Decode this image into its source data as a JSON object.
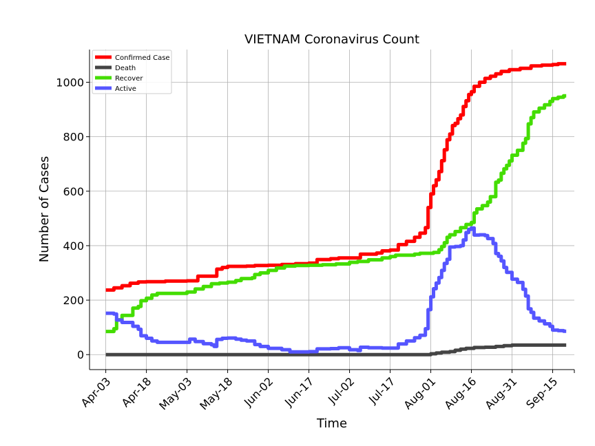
{
  "chart_data": {
    "type": "line",
    "title": "VIETNAM Coronavirus Count",
    "xlabel": "Time",
    "ylabel": "Number of Cases",
    "x_ticks": [
      "Apr-03",
      "Apr-18",
      "May-03",
      "May-18",
      "Jun-02",
      "Jun-17",
      "Jul-02",
      "Jul-17",
      "Aug-01",
      "Aug-16",
      "Aug-31",
      "Sep-15"
    ],
    "y_ticks": [
      0,
      200,
      400,
      600,
      800,
      1000
    ],
    "xlim": [
      "2020-03-28",
      "2020-09-23"
    ],
    "ylim": [
      -55,
      1120
    ],
    "grid": true,
    "legend_position": "top-left",
    "date_start": "2020-04-03",
    "series": [
      {
        "name": "Confirmed Case",
        "color": "#ff0000",
        "points": [
          [
            "2020-04-03",
            237
          ],
          [
            "2020-04-06",
            245
          ],
          [
            "2020-04-09",
            253
          ],
          [
            "2020-04-12",
            262
          ],
          [
            "2020-04-15",
            267
          ],
          [
            "2020-04-18",
            268
          ],
          [
            "2020-04-24",
            268
          ],
          [
            "2020-04-25",
            270
          ],
          [
            "2020-05-03",
            271
          ],
          [
            "2020-05-06",
            271
          ],
          [
            "2020-05-07",
            288
          ],
          [
            "2020-05-13",
            288
          ],
          [
            "2020-05-14",
            314
          ],
          [
            "2020-05-16",
            320
          ],
          [
            "2020-05-18",
            324
          ],
          [
            "2020-05-25",
            325
          ],
          [
            "2020-05-28",
            327
          ],
          [
            "2020-06-02",
            328
          ],
          [
            "2020-06-07",
            331
          ],
          [
            "2020-06-12",
            334
          ],
          [
            "2020-06-17",
            336
          ],
          [
            "2020-06-20",
            349
          ],
          [
            "2020-06-25",
            352
          ],
          [
            "2020-06-28",
            355
          ],
          [
            "2020-07-02",
            355
          ],
          [
            "2020-07-05",
            355
          ],
          [
            "2020-07-06",
            369
          ],
          [
            "2020-07-12",
            373
          ],
          [
            "2020-07-14",
            381
          ],
          [
            "2020-07-17",
            384
          ],
          [
            "2020-07-20",
            404
          ],
          [
            "2020-07-23",
            416
          ],
          [
            "2020-07-26",
            431
          ],
          [
            "2020-07-28",
            446
          ],
          [
            "2020-07-30",
            466
          ],
          [
            "2020-07-31",
            540
          ],
          [
            "2020-08-01",
            590
          ],
          [
            "2020-08-02",
            620
          ],
          [
            "2020-08-03",
            642
          ],
          [
            "2020-08-04",
            672
          ],
          [
            "2020-08-05",
            712
          ],
          [
            "2020-08-06",
            752
          ],
          [
            "2020-08-07",
            789
          ],
          [
            "2020-08-08",
            810
          ],
          [
            "2020-08-09",
            841
          ],
          [
            "2020-08-10",
            849
          ],
          [
            "2020-08-11",
            866
          ],
          [
            "2020-08-12",
            880
          ],
          [
            "2020-08-13",
            911
          ],
          [
            "2020-08-14",
            932
          ],
          [
            "2020-08-15",
            955
          ],
          [
            "2020-08-16",
            965
          ],
          [
            "2020-08-17",
            985
          ],
          [
            "2020-08-19",
            1000
          ],
          [
            "2020-08-21",
            1014
          ],
          [
            "2020-08-23",
            1022
          ],
          [
            "2020-08-25",
            1031
          ],
          [
            "2020-08-27",
            1040
          ],
          [
            "2020-08-30",
            1046
          ],
          [
            "2020-09-03",
            1051
          ],
          [
            "2020-09-07",
            1060
          ],
          [
            "2020-09-11",
            1063
          ],
          [
            "2020-09-15",
            1065
          ],
          [
            "2020-09-17",
            1068
          ],
          [
            "2020-09-20",
            1068
          ]
        ]
      },
      {
        "name": "Death",
        "color": "#444444",
        "points": [
          [
            "2020-04-03",
            0
          ],
          [
            "2020-07-31",
            0
          ],
          [
            "2020-08-01",
            3
          ],
          [
            "2020-08-03",
            6
          ],
          [
            "2020-08-05",
            9
          ],
          [
            "2020-08-08",
            11
          ],
          [
            "2020-08-10",
            16
          ],
          [
            "2020-08-12",
            20
          ],
          [
            "2020-08-14",
            23
          ],
          [
            "2020-08-17",
            26
          ],
          [
            "2020-08-21",
            27
          ],
          [
            "2020-08-25",
            30
          ],
          [
            "2020-08-28",
            33
          ],
          [
            "2020-08-31",
            35
          ],
          [
            "2020-09-05",
            35
          ],
          [
            "2020-09-20",
            35
          ]
        ]
      },
      {
        "name": "Recover",
        "color": "#44dd00",
        "points": [
          [
            "2020-04-03",
            85
          ],
          [
            "2020-04-06",
            95
          ],
          [
            "2020-04-07",
            128
          ],
          [
            "2020-04-09",
            144
          ],
          [
            "2020-04-12",
            144
          ],
          [
            "2020-04-13",
            171
          ],
          [
            "2020-04-15",
            177
          ],
          [
            "2020-04-16",
            198
          ],
          [
            "2020-04-18",
            207
          ],
          [
            "2020-04-20",
            219
          ],
          [
            "2020-04-22",
            225
          ],
          [
            "2020-04-25",
            225
          ],
          [
            "2020-05-03",
            230
          ],
          [
            "2020-05-06",
            241
          ],
          [
            "2020-05-09",
            250
          ],
          [
            "2020-05-12",
            260
          ],
          [
            "2020-05-15",
            263
          ],
          [
            "2020-05-18",
            266
          ],
          [
            "2020-05-21",
            272
          ],
          [
            "2020-05-23",
            279
          ],
          [
            "2020-05-27",
            282
          ],
          [
            "2020-05-28",
            294
          ],
          [
            "2020-05-30",
            300
          ],
          [
            "2020-06-02",
            309
          ],
          [
            "2020-06-05",
            318
          ],
          [
            "2020-06-08",
            325
          ],
          [
            "2020-06-12",
            327
          ],
          [
            "2020-06-17",
            328
          ],
          [
            "2020-06-22",
            330
          ],
          [
            "2020-06-27",
            333
          ],
          [
            "2020-07-02",
            339
          ],
          [
            "2020-07-05",
            342
          ],
          [
            "2020-07-09",
            348
          ],
          [
            "2020-07-14",
            355
          ],
          [
            "2020-07-17",
            360
          ],
          [
            "2020-07-19",
            365
          ],
          [
            "2020-07-26",
            369
          ],
          [
            "2020-07-28",
            372
          ],
          [
            "2020-08-02",
            375
          ],
          [
            "2020-08-04",
            385
          ],
          [
            "2020-08-05",
            397
          ],
          [
            "2020-08-06",
            411
          ],
          [
            "2020-08-07",
            431
          ],
          [
            "2020-08-08",
            440
          ],
          [
            "2020-08-10",
            452
          ],
          [
            "2020-08-12",
            466
          ],
          [
            "2020-08-14",
            478
          ],
          [
            "2020-08-16",
            485
          ],
          [
            "2020-08-17",
            520
          ],
          [
            "2020-08-18",
            535
          ],
          [
            "2020-08-20",
            547
          ],
          [
            "2020-08-22",
            560
          ],
          [
            "2020-08-23",
            580
          ],
          [
            "2020-08-25",
            633
          ],
          [
            "2020-08-26",
            641
          ],
          [
            "2020-08-27",
            666
          ],
          [
            "2020-08-28",
            682
          ],
          [
            "2020-08-29",
            695
          ],
          [
            "2020-08-30",
            711
          ],
          [
            "2020-08-31",
            732
          ],
          [
            "2020-09-02",
            750
          ],
          [
            "2020-09-04",
            776
          ],
          [
            "2020-09-05",
            793
          ],
          [
            "2020-09-06",
            847
          ],
          [
            "2020-09-07",
            870
          ],
          [
            "2020-09-08",
            891
          ],
          [
            "2020-09-10",
            905
          ],
          [
            "2020-09-12",
            917
          ],
          [
            "2020-09-14",
            930
          ],
          [
            "2020-09-15",
            940
          ],
          [
            "2020-09-17",
            945
          ],
          [
            "2020-09-19",
            950
          ],
          [
            "2020-09-20",
            950
          ]
        ]
      },
      {
        "name": "Active",
        "color": "#5555ff",
        "points": [
          [
            "2020-04-03",
            152
          ],
          [
            "2020-04-06",
            149
          ],
          [
            "2020-04-07",
            127
          ],
          [
            "2020-04-09",
            118
          ],
          [
            "2020-04-12",
            118
          ],
          [
            "2020-04-13",
            104
          ],
          [
            "2020-04-15",
            93
          ],
          [
            "2020-04-16",
            69
          ],
          [
            "2020-04-18",
            60
          ],
          [
            "2020-04-20",
            50
          ],
          [
            "2020-04-22",
            45
          ],
          [
            "2020-04-25",
            45
          ],
          [
            "2020-05-03",
            45
          ],
          [
            "2020-05-04",
            57
          ],
          [
            "2020-05-06",
            48
          ],
          [
            "2020-05-09",
            40
          ],
          [
            "2020-05-12",
            36
          ],
          [
            "2020-05-13",
            30
          ],
          [
            "2020-05-14",
            56
          ],
          [
            "2020-05-16",
            60
          ],
          [
            "2020-05-18",
            61
          ],
          [
            "2020-05-21",
            57
          ],
          [
            "2020-05-23",
            53
          ],
          [
            "2020-05-25",
            50
          ],
          [
            "2020-05-28",
            37
          ],
          [
            "2020-05-30",
            30
          ],
          [
            "2020-06-02",
            23
          ],
          [
            "2020-06-07",
            18
          ],
          [
            "2020-06-10",
            10
          ],
          [
            "2020-06-17",
            11
          ],
          [
            "2020-06-20",
            21
          ],
          [
            "2020-06-25",
            22
          ],
          [
            "2020-06-28",
            25
          ],
          [
            "2020-07-02",
            18
          ],
          [
            "2020-07-05",
            15
          ],
          [
            "2020-07-06",
            27
          ],
          [
            "2020-07-09",
            25
          ],
          [
            "2020-07-14",
            24
          ],
          [
            "2020-07-17",
            24
          ],
          [
            "2020-07-20",
            39
          ],
          [
            "2020-07-23",
            50
          ],
          [
            "2020-07-26",
            62
          ],
          [
            "2020-07-28",
            71
          ],
          [
            "2020-07-30",
            95
          ],
          [
            "2020-07-31",
            165
          ],
          [
            "2020-08-01",
            212
          ],
          [
            "2020-08-02",
            242
          ],
          [
            "2020-08-03",
            263
          ],
          [
            "2020-08-04",
            283
          ],
          [
            "2020-08-05",
            309
          ],
          [
            "2020-08-06",
            335
          ],
          [
            "2020-08-07",
            350
          ],
          [
            "2020-08-08",
            395
          ],
          [
            "2020-08-10",
            397
          ],
          [
            "2020-08-12",
            400
          ],
          [
            "2020-08-13",
            421
          ],
          [
            "2020-08-14",
            448
          ],
          [
            "2020-08-15",
            460
          ],
          [
            "2020-08-16",
            465
          ],
          [
            "2020-08-17",
            439
          ],
          [
            "2020-08-19",
            440
          ],
          [
            "2020-08-21",
            437
          ],
          [
            "2020-08-22",
            426
          ],
          [
            "2020-08-24",
            408
          ],
          [
            "2020-08-25",
            371
          ],
          [
            "2020-08-26",
            361
          ],
          [
            "2020-08-27",
            344
          ],
          [
            "2020-08-28",
            320
          ],
          [
            "2020-08-29",
            302
          ],
          [
            "2020-08-31",
            277
          ],
          [
            "2020-09-02",
            265
          ],
          [
            "2020-09-04",
            240
          ],
          [
            "2020-09-05",
            215
          ],
          [
            "2020-09-06",
            168
          ],
          [
            "2020-09-07",
            155
          ],
          [
            "2020-09-08",
            134
          ],
          [
            "2020-09-10",
            124
          ],
          [
            "2020-09-12",
            113
          ],
          [
            "2020-09-14",
            104
          ],
          [
            "2020-09-15",
            90
          ],
          [
            "2020-09-17",
            88
          ],
          [
            "2020-09-19",
            86
          ],
          [
            "2020-09-20",
            86
          ]
        ]
      }
    ]
  }
}
